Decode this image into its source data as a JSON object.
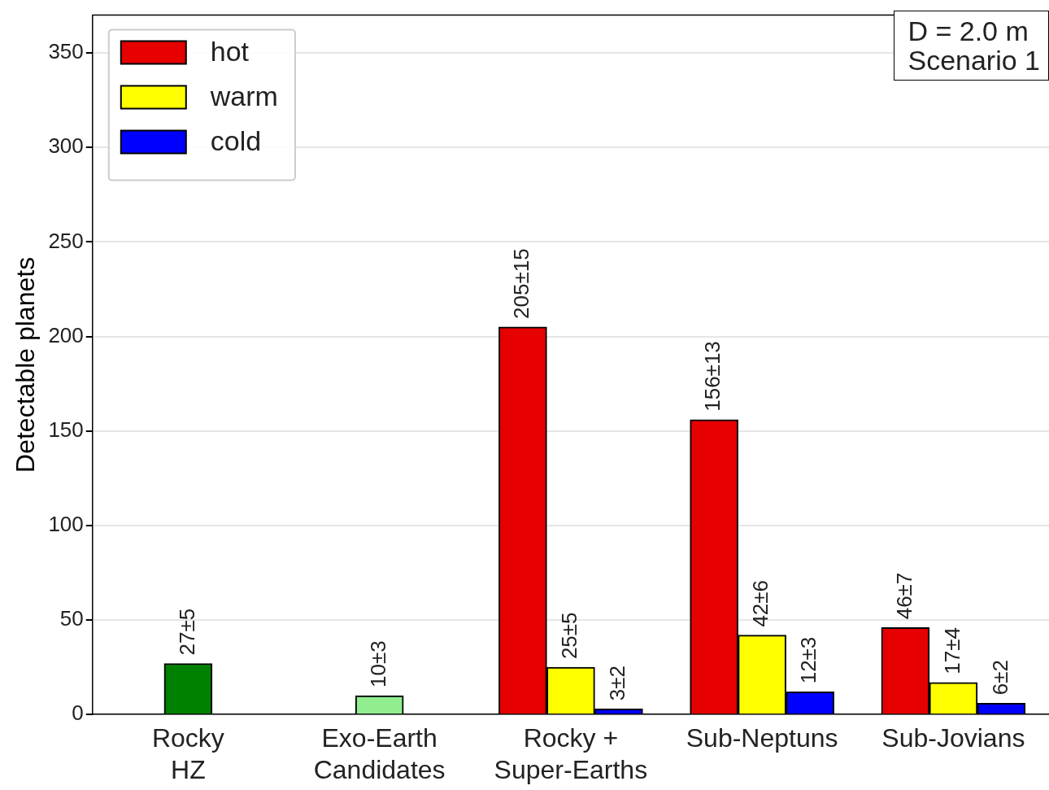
{
  "chart_data": {
    "type": "bar",
    "categories": [
      "Rocky\nHZ",
      "Exo-Earth\nCandidates",
      "Rocky +\nSuper-Earths",
      "Sub-Neptuns",
      "Sub-Jovians"
    ],
    "series": [
      {
        "colors": [
          "#008000",
          "#90ee90",
          null,
          null,
          null
        ],
        "values": [
          27,
          10,
          null,
          null,
          null
        ],
        "value_labels": [
          "27±5",
          "10±3",
          null,
          null,
          null
        ]
      },
      {
        "name": "hot",
        "color": "#e60000",
        "values": [
          null,
          null,
          205,
          156,
          46
        ],
        "value_labels": [
          null,
          null,
          "205±15",
          "156±13",
          "46±7"
        ]
      },
      {
        "name": "warm",
        "color": "#ffff00",
        "values": [
          null,
          null,
          25,
          42,
          17
        ],
        "value_labels": [
          null,
          null,
          "25±5",
          "42±6",
          "17±4"
        ]
      },
      {
        "name": "cold",
        "color": "#0000ff",
        "values": [
          null,
          null,
          3,
          12,
          6
        ],
        "value_labels": [
          null,
          null,
          "3±2",
          "12±3",
          "6±2"
        ]
      }
    ],
    "ylabel": "Detectable planets",
    "ylim": [
      0,
      370
    ],
    "yticks": [
      0,
      50,
      100,
      150,
      200,
      250,
      300,
      350
    ],
    "grid": "y",
    "legend": "top left",
    "annotations": [
      "D = 2.0 m\nScenario 1"
    ]
  }
}
